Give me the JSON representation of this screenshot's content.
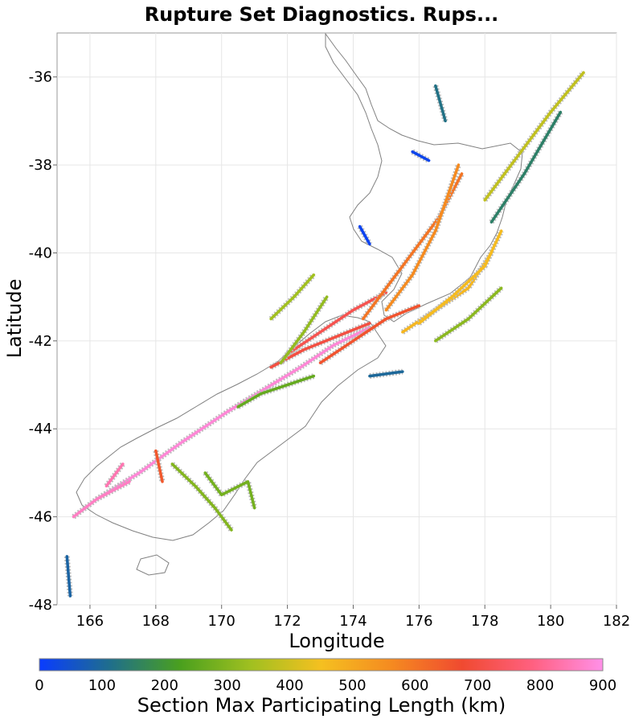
{
  "chart_data": {
    "type": "scatter",
    "title": "Rupture Set Diagnostics. Rups...",
    "xlabel": "Longitude",
    "ylabel": "Latitude",
    "xlim": [
      165,
      182
    ],
    "ylim": [
      -48,
      -35
    ],
    "xticks": [
      166,
      168,
      170,
      172,
      174,
      176,
      178,
      180,
      182
    ],
    "yticks": [
      -36,
      -38,
      -40,
      -42,
      -44,
      -46,
      -48
    ],
    "grid": true,
    "colorbar": {
      "label": "Section Max Participating Length (km)",
      "range": [
        0,
        900
      ],
      "ticks": [
        0,
        100,
        200,
        300,
        400,
        500,
        600,
        700,
        800,
        900
      ],
      "colors": [
        "#0a3cff",
        "#1f6e8c",
        "#4aa01e",
        "#a0c020",
        "#f5c020",
        "#f58a20",
        "#f04a30",
        "#ff6080",
        "#ff90e8"
      ]
    },
    "coastline_color": "#808080",
    "fault_traces": [
      {
        "lon": [
          166.2,
          167.5,
          168.8,
          170.2,
          171.3,
          172.4,
          173.4,
          174.5
        ],
        "lat": [
          -45.6,
          -45.0,
          -44.3,
          -43.6,
          -43.1,
          -42.6,
          -42.1,
          -41.7
        ],
        "value": 880
      },
      {
        "lon": [
          165.5,
          166.2,
          167.2
        ],
        "lat": [
          -46.0,
          -45.6,
          -45.2
        ],
        "value": 860
      },
      {
        "lon": [
          172.0,
          173.0,
          174.0,
          175.0
        ],
        "lat": [
          -42.3,
          -41.8,
          -41.3,
          -40.9
        ],
        "value": 720
      },
      {
        "lon": [
          171.5,
          172.5,
          173.5,
          174.5
        ],
        "lat": [
          -42.6,
          -42.2,
          -41.9,
          -41.6
        ],
        "value": 700
      },
      {
        "lon": [
          173.0,
          174.0,
          175.0,
          176.0
        ],
        "lat": [
          -42.5,
          -42.0,
          -41.5,
          -41.2
        ],
        "value": 660
      },
      {
        "lon": [
          174.3,
          175.0,
          175.8,
          176.6,
          177.3
        ],
        "lat": [
          -41.5,
          -40.8,
          -40.0,
          -39.2,
          -38.2
        ],
        "value": 600
      },
      {
        "lon": [
          175.0,
          175.8,
          176.5,
          177.2
        ],
        "lat": [
          -41.3,
          -40.5,
          -39.5,
          -38.0
        ],
        "value": 560
      },
      {
        "lon": [
          175.5,
          176.5,
          177.5,
          178.2
        ],
        "lat": [
          -41.8,
          -41.3,
          -40.8,
          -40.0
        ],
        "value": 470
      },
      {
        "lon": [
          176.0,
          177.0,
          178.0,
          178.5
        ],
        "lat": [
          -41.6,
          -41.0,
          -40.3,
          -39.5
        ],
        "value": 460
      },
      {
        "lon": [
          178.0,
          179.0,
          180.0,
          181.0
        ],
        "lat": [
          -38.8,
          -37.8,
          -36.8,
          -35.9
        ],
        "value": 380
      },
      {
        "lon": [
          178.2,
          179.2,
          180.3
        ],
        "lat": [
          -39.3,
          -38.2,
          -36.8
        ],
        "value": 150
      },
      {
        "lon": [
          168.5,
          169.2,
          169.8,
          170.3
        ],
        "lat": [
          -44.8,
          -45.3,
          -45.8,
          -46.3
        ],
        "value": 300
      },
      {
        "lon": [
          169.5,
          170.0,
          170.8,
          171.0
        ],
        "lat": [
          -45.0,
          -45.5,
          -45.2,
          -45.8
        ],
        "value": 280
      },
      {
        "lon": [
          170.5,
          171.2,
          172.0,
          172.8
        ],
        "lat": [
          -43.5,
          -43.2,
          -43.0,
          -42.8
        ],
        "value": 260
      },
      {
        "lon": [
          171.5,
          172.2,
          172.8
        ],
        "lat": [
          -41.5,
          -41.0,
          -40.5
        ],
        "value": 340
      },
      {
        "lon": [
          171.8,
          172.5,
          173.2
        ],
        "lat": [
          -42.5,
          -41.8,
          -41.0
        ],
        "value": 320
      },
      {
        "lon": [
          176.5,
          177.5,
          178.5
        ],
        "lat": [
          -42.0,
          -41.5,
          -40.8
        ],
        "value": 310
      },
      {
        "lon": [
          174.5,
          175.5
        ],
        "lat": [
          -42.8,
          -42.7
        ],
        "value": 100
      },
      {
        "lon": [
          165.3,
          165.4
        ],
        "lat": [
          -46.9,
          -47.8
        ],
        "value": 90
      },
      {
        "lon": [
          176.5,
          176.8
        ],
        "lat": [
          -36.2,
          -37.0
        ],
        "value": 120
      },
      {
        "lon": [
          175.8,
          176.3
        ],
        "lat": [
          -37.7,
          -37.9
        ],
        "value": 20
      },
      {
        "lon": [
          174.2,
          174.5
        ],
        "lat": [
          -39.4,
          -39.8
        ],
        "value": 15
      },
      {
        "lon": [
          168.0,
          168.2
        ],
        "lat": [
          -44.5,
          -45.2
        ],
        "value": 650
      },
      {
        "lon": [
          166.5,
          167.0
        ],
        "lat": [
          -45.3,
          -44.8
        ],
        "value": 840
      }
    ]
  }
}
